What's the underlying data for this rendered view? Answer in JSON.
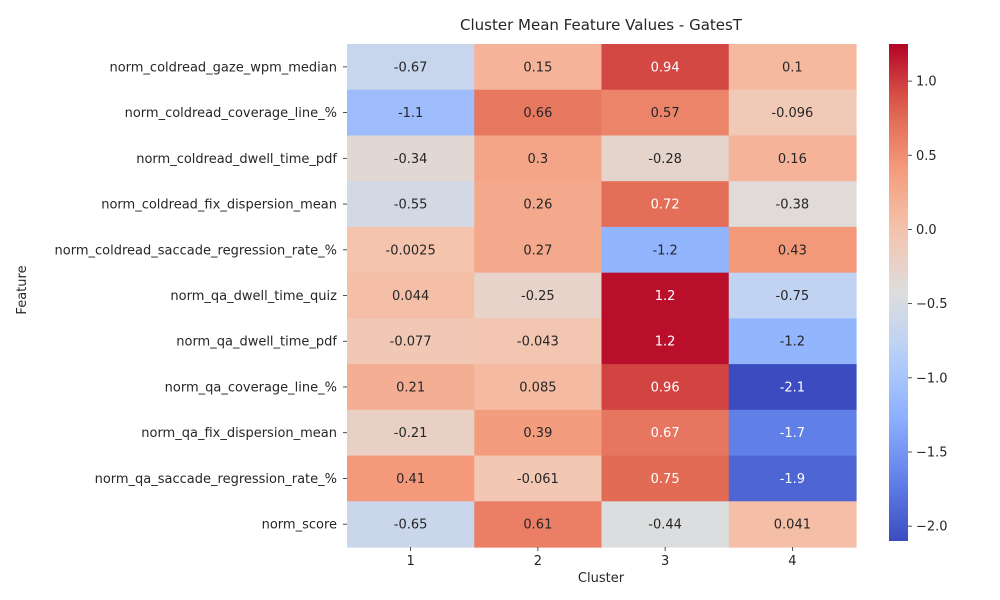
{
  "chart_data": {
    "type": "heatmap",
    "title": "Cluster Mean Feature Values - GatesT",
    "xlabel": "Cluster",
    "ylabel": "Feature",
    "x_categories": [
      "1",
      "2",
      "3",
      "4"
    ],
    "y_categories": [
      "norm_coldread_gaze_wpm_median",
      "norm_coldread_coverage_line_%",
      "norm_coldread_dwell_time_pdf",
      "norm_coldread_fix_dispersion_mean",
      "norm_coldread_saccade_regression_rate_%",
      "norm_qa_dwell_time_quiz",
      "norm_qa_dwell_time_pdf",
      "norm_qa_coverage_line_%",
      "norm_qa_fix_dispersion_mean",
      "norm_qa_saccade_regression_rate_%",
      "norm_score"
    ],
    "values": [
      [
        -0.67,
        0.15,
        0.94,
        0.1
      ],
      [
        -1.1,
        0.66,
        0.57,
        -0.096
      ],
      [
        -0.34,
        0.3,
        -0.28,
        0.16
      ],
      [
        -0.55,
        0.26,
        0.72,
        -0.38
      ],
      [
        -0.0025,
        0.27,
        -1.2,
        0.43
      ],
      [
        0.044,
        -0.25,
        1.2,
        -0.75
      ],
      [
        -0.077,
        -0.043,
        1.2,
        -1.2
      ],
      [
        0.21,
        0.085,
        0.96,
        -2.1
      ],
      [
        -0.21,
        0.39,
        0.67,
        -1.7
      ],
      [
        0.41,
        -0.061,
        0.75,
        -1.9
      ],
      [
        -0.65,
        0.61,
        -0.44,
        0.041
      ]
    ],
    "labels": [
      [
        "-0.67",
        "0.15",
        "0.94",
        "0.1"
      ],
      [
        "-1.1",
        "0.66",
        "0.57",
        "-0.096"
      ],
      [
        "-0.34",
        "0.3",
        "-0.28",
        "0.16"
      ],
      [
        "-0.55",
        "0.26",
        "0.72",
        "-0.38"
      ],
      [
        "-0.0025",
        "0.27",
        "-1.2",
        "0.43"
      ],
      [
        "0.044",
        "-0.25",
        "1.2",
        "-0.75"
      ],
      [
        "-0.077",
        "-0.043",
        "1.2",
        "-1.2"
      ],
      [
        "0.21",
        "0.085",
        "0.96",
        "-2.1"
      ],
      [
        "-0.21",
        "0.39",
        "0.67",
        "-1.7"
      ],
      [
        "0.41",
        "-0.061",
        "0.75",
        "-1.9"
      ],
      [
        "-0.65",
        "0.61",
        "-0.44",
        "0.041"
      ]
    ],
    "colormap": "coolwarm",
    "color_range": [
      -2.1,
      1.25
    ],
    "colorbar_ticks": [
      -2.0,
      -1.5,
      -1.0,
      -0.5,
      0.0,
      0.5,
      1.0
    ],
    "colorbar_tick_labels": [
      "−2.0",
      "−1.5",
      "−1.0",
      "−0.5",
      "0.0",
      "0.5",
      "1.0"
    ],
    "grid": false,
    "legend": "colorbar-right"
  }
}
